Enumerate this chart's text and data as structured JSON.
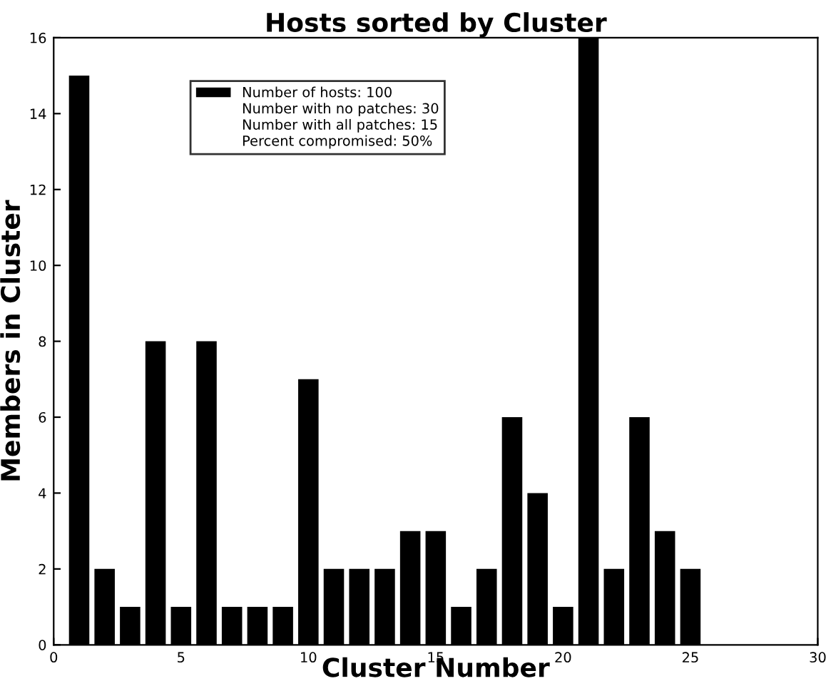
{
  "chart_data": {
    "type": "bar",
    "title": "Hosts sorted by Cluster",
    "xlabel": "Cluster Number",
    "ylabel": "Members in Cluster",
    "x": [
      1,
      2,
      3,
      4,
      5,
      6,
      7,
      8,
      9,
      10,
      11,
      12,
      13,
      14,
      15,
      16,
      17,
      18,
      19,
      20,
      21,
      22,
      23,
      24,
      25
    ],
    "series": [
      {
        "name": "Number of hosts: 100",
        "color": "#000000",
        "values": [
          15,
          2,
          1,
          8,
          1,
          8,
          1,
          1,
          1,
          7,
          2,
          2,
          2,
          3,
          3,
          1,
          2,
          6,
          4,
          1,
          16,
          2,
          6,
          3,
          2
        ]
      }
    ],
    "annotations": [
      "Number with no patches: 30",
      "Number with all patches: 15",
      "Percent compromised: 50%"
    ],
    "xlim": [
      0,
      30
    ],
    "xticks": [
      0,
      5,
      10,
      15,
      20,
      25,
      30
    ],
    "ylim": [
      0,
      16
    ],
    "yticks": [
      0,
      2,
      4,
      6,
      8,
      10,
      12,
      14,
      16
    ],
    "grid": false,
    "legend": "top left"
  }
}
